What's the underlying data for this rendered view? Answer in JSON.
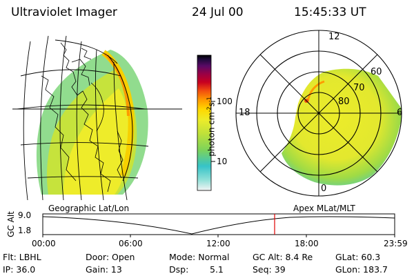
{
  "header": {
    "instrument": "Ultraviolet Imager",
    "date": "24 Jul 00",
    "time": "15:45:33 UT"
  },
  "colorbar": {
    "unit_label": "photon cm",
    "unit_sup1": "-2",
    "unit_mid": "s",
    "unit_sup2": "-1",
    "ticks": [
      "100",
      "10"
    ],
    "colors": [
      "#f3f4f4",
      "#8fe0d8",
      "#36c3c8",
      "#7dd35a",
      "#bfe13a",
      "#ecec2a",
      "#ffd700",
      "#ff9a00",
      "#f04a10",
      "#c80020",
      "#9b0044",
      "#5a0a66",
      "#1e0a3a",
      "#000000"
    ]
  },
  "geo_panel": {
    "label": "Geographic Lat/Lon"
  },
  "polar_panel": {
    "label": "Apex MLat/MLT",
    "mlt_labels": [
      "12",
      "18",
      "6",
      "0"
    ],
    "lat_labels": [
      "60",
      "70",
      "80"
    ]
  },
  "altitude_plot": {
    "ylabel": "GC Alt",
    "yticks": [
      "9.0",
      "1.8"
    ],
    "xticks": [
      "00:00",
      "06:00",
      "12:00",
      "18:00",
      "23:59"
    ],
    "current_marker_utc": "15:45",
    "marker_color": "#e00000"
  },
  "info": {
    "flt": "Flt: LBHL",
    "ip": "IP: 36.0",
    "door": "Door: Open",
    "gain": "Gain: 13",
    "mode": "Mode: Normal",
    "dsp_label": "Dsp:",
    "dsp_value": "5.1",
    "gc_alt": "GC Alt: 8.4 Re",
    "seq": "Seq: 39",
    "glat": "GLat: 60.3",
    "glon": "GLon: 183.7"
  }
}
